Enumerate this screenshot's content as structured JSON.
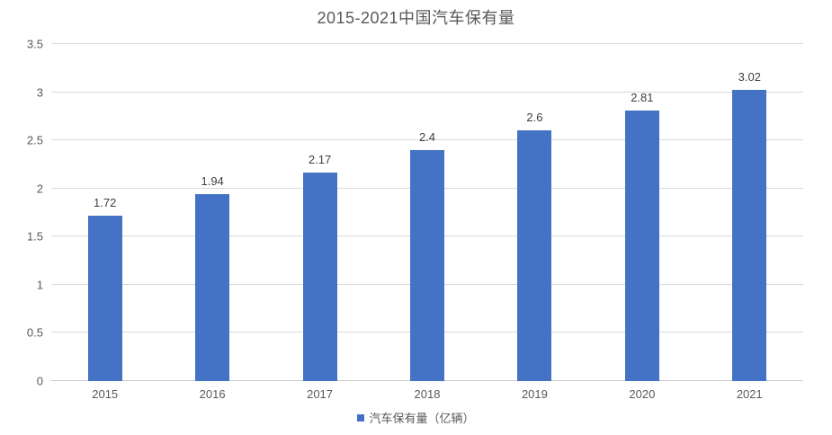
{
  "chart": {
    "title": "2015-2021中国汽车保有量"
  },
  "legend": {
    "label": "汽车保有量（亿辆）",
    "marker_color": "#4472C4"
  },
  "chart_data": {
    "type": "bar",
    "title": "2015-2021中国汽车保有量",
    "categories": [
      "2015",
      "2016",
      "2017",
      "2018",
      "2019",
      "2020",
      "2021"
    ],
    "values": [
      1.72,
      1.94,
      2.17,
      2.4,
      2.6,
      2.81,
      3.02
    ],
    "data_labels": [
      "1.72",
      "1.94",
      "2.17",
      "2.4",
      "2.6",
      "2.81",
      "3.02"
    ],
    "series_name": "汽车保有量（亿辆）",
    "xlabel": "",
    "ylabel": "",
    "ylim": [
      0,
      3.5
    ],
    "ytick_step": 0.5,
    "yticks": [
      "0",
      "0.5",
      "1",
      "1.5",
      "2",
      "2.5",
      "3",
      "3.5"
    ],
    "grid": true,
    "legend_position": "bottom",
    "bar_color": "#4472C4",
    "gridline_color": "#D9D9D9"
  }
}
